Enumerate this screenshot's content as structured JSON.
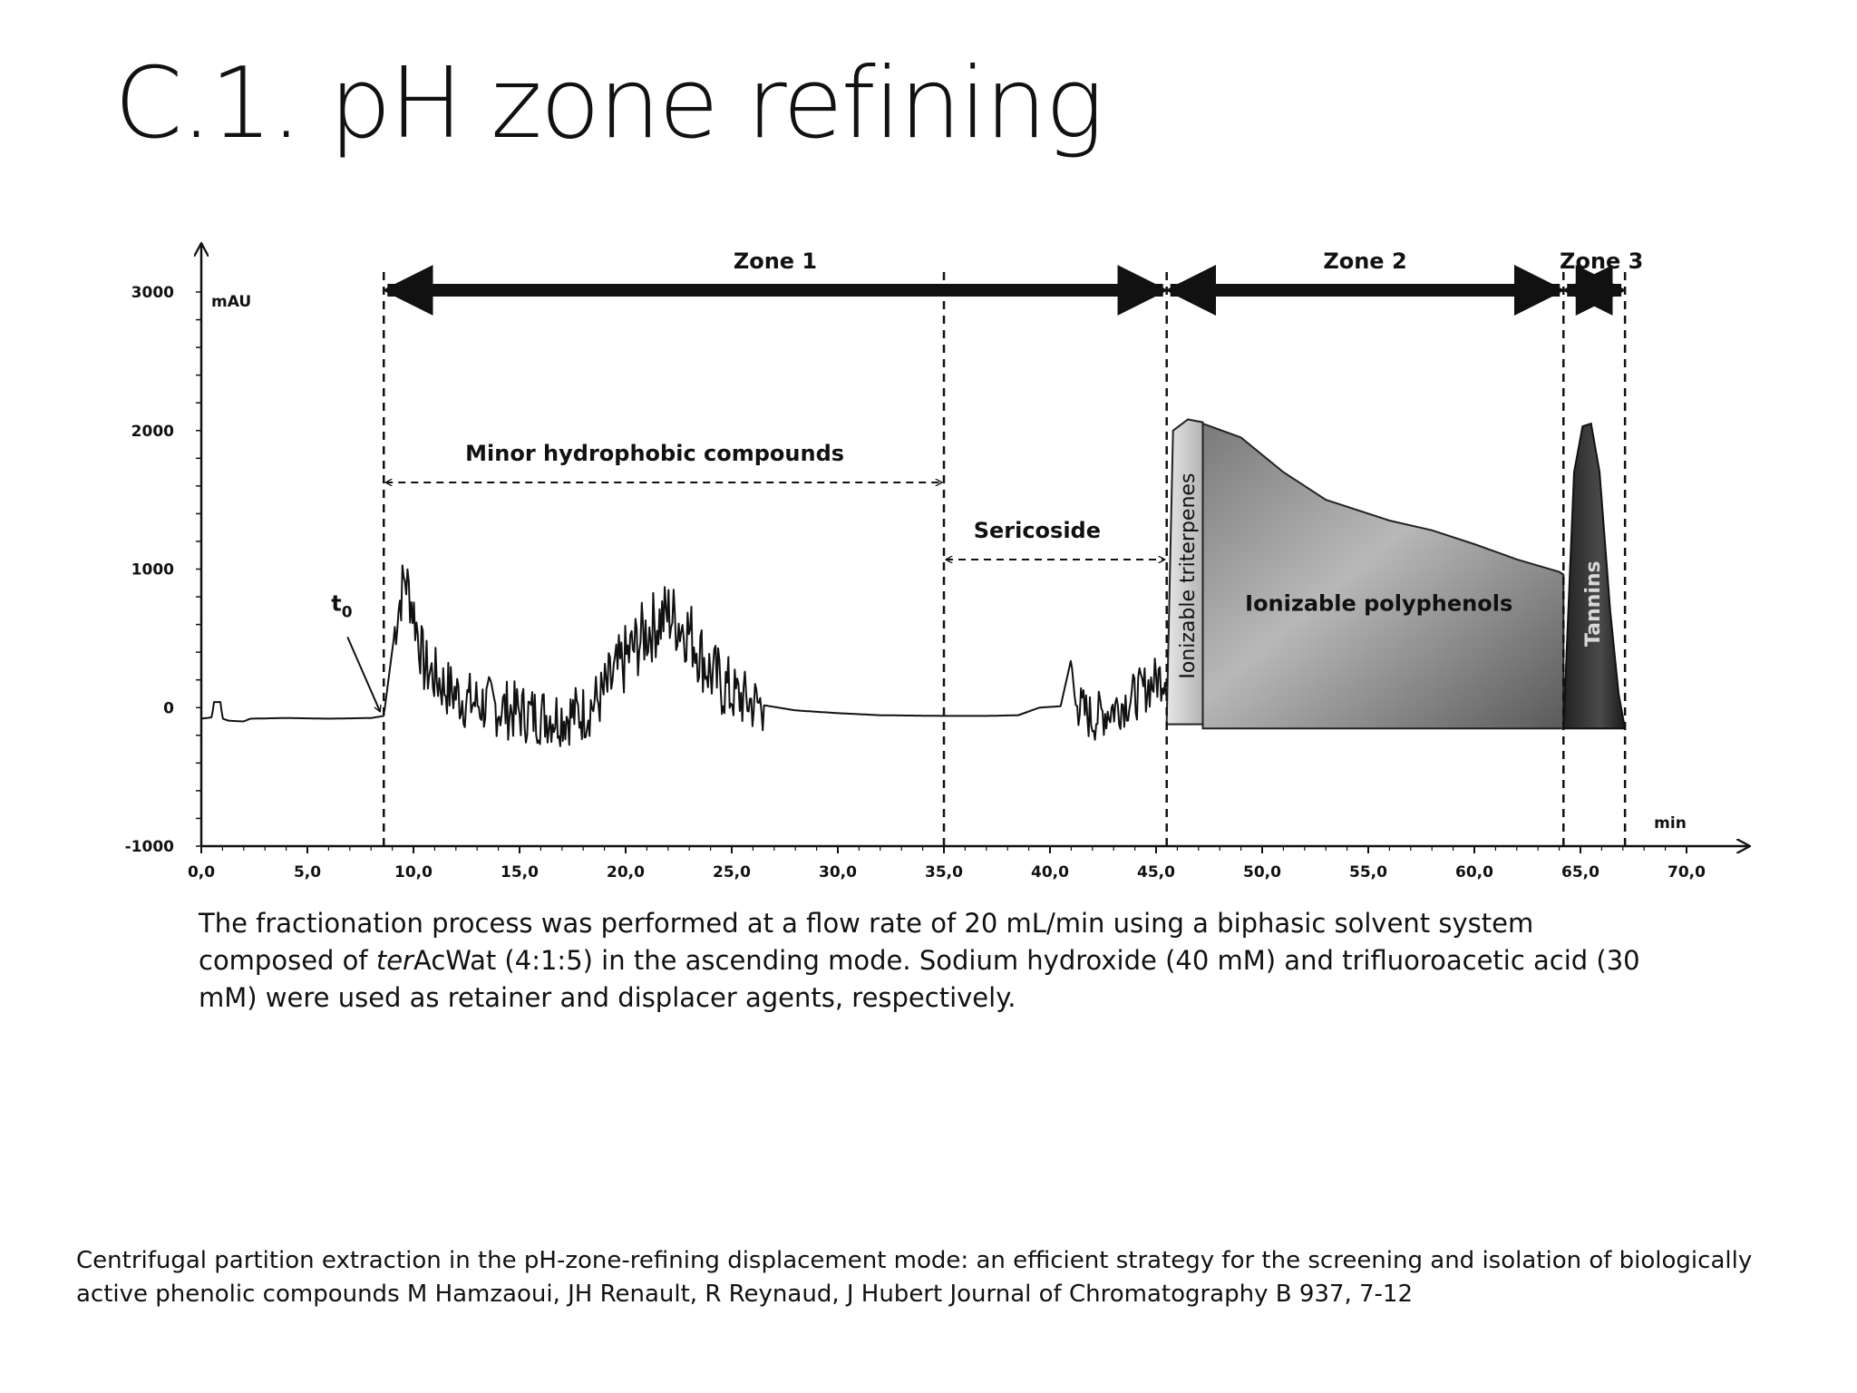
{
  "slide": {
    "title": "C.1. pH zone refining",
    "caption_parts": [
      "The fractionation process was performed at a flow rate of 20 mL/min using a biphasic solvent system composed of ",
      "ter",
      "AcWat (4:1:5) in the ascending mode. Sodium  hydroxide (40 mM) and trifluoroacetic acid (30 mM) were used as retainer and displacer agents, respectively."
    ],
    "reference": "Centrifugal partition extraction in the pH-zone-refining displacement mode: an efficient strategy for the screening and isolation of biologically active phenolic compounds M Hamzaoui, JH Renault, R Reynaud, J Hubert Journal of Chromatography B 937, 7-12"
  },
  "chart_data": {
    "type": "line",
    "xlabel": "min",
    "ylabel": "mAU",
    "xlim": [
      0,
      70
    ],
    "ylim": [
      -1000,
      3000
    ],
    "x_ticks": [
      "0,0",
      "5,0",
      "10,0",
      "15,0",
      "20,0",
      "25,0",
      "30,0",
      "35,0",
      "40,0",
      "45,0",
      "50,0",
      "55,0",
      "60,0",
      "65,0",
      "70,0"
    ],
    "y_ticks": [
      "-1000",
      "0",
      "1000",
      "2000",
      "3000"
    ],
    "t0_label": "t",
    "t0_subscript": "0",
    "t0_x": 8.6,
    "zones": [
      {
        "label": "Zone 1",
        "start": 8.6,
        "end": 45.5
      },
      {
        "label": "Zone 2",
        "start": 45.5,
        "end": 64.2
      },
      {
        "label": "Zone 3",
        "start": 64.2,
        "end": 67.1
      }
    ],
    "fraction_ranges": [
      {
        "label": "Minor hydrophobic compounds",
        "start": 8.6,
        "end": 35.0
      },
      {
        "label": "Sericoside",
        "start": 35.0,
        "end": 45.5
      }
    ],
    "regions": [
      {
        "label": "Ionizable triterpenes",
        "start": 45.5,
        "end": 47.2,
        "shade": "#d2d2d2"
      },
      {
        "label": "Ionizable polyphenols",
        "start": 47.2,
        "end": 64.2,
        "shade": "#9a9a9a"
      },
      {
        "label": "Tannins",
        "start": 64.2,
        "end": 67.1,
        "shade": "#333333"
      }
    ],
    "series": [
      {
        "values": [
          [
            0,
            -80
          ],
          [
            0.5,
            -70
          ],
          [
            0.6,
            40
          ],
          [
            0.9,
            40
          ],
          [
            1.0,
            -80
          ],
          [
            1.3,
            -95
          ],
          [
            2.0,
            -100
          ],
          [
            2.3,
            -80
          ],
          [
            4.0,
            -75
          ],
          [
            6.0,
            -80
          ],
          [
            8.0,
            -75
          ],
          [
            8.6,
            -60
          ],
          [
            9.2,
            650
          ],
          [
            9.6,
            950
          ],
          [
            10.0,
            700
          ],
          [
            10.5,
            300
          ],
          [
            11.5,
            150
          ],
          [
            12.5,
            50
          ],
          [
            14.0,
            0
          ],
          [
            15.5,
            -50
          ],
          [
            17.0,
            -60
          ],
          [
            18.0,
            -40
          ],
          [
            19.0,
            100
          ],
          [
            20.0,
            350
          ],
          [
            21.0,
            550
          ],
          [
            22.0,
            680
          ],
          [
            23.0,
            550
          ],
          [
            24.0,
            250
          ],
          [
            25.0,
            100
          ],
          [
            26.0,
            30
          ],
          [
            28.0,
            -20
          ],
          [
            30.0,
            -40
          ],
          [
            32.0,
            -55
          ],
          [
            35.0,
            -60
          ],
          [
            37.0,
            -60
          ],
          [
            38.5,
            -55
          ],
          [
            39.5,
            0
          ],
          [
            40.5,
            10
          ],
          [
            41.0,
            350
          ],
          [
            41.2,
            20
          ],
          [
            42.0,
            -80
          ],
          [
            43.0,
            0
          ],
          [
            44.0,
            80
          ],
          [
            45.0,
            200
          ],
          [
            45.5,
            250
          ]
        ]
      }
    ],
    "fill_curves": {
      "ionizable_triterpenes": [
        [
          45.5,
          -100
        ],
        [
          45.8,
          2000
        ],
        [
          46.5,
          2080
        ],
        [
          47.2,
          2060
        ],
        [
          47.2,
          -120
        ],
        [
          45.5,
          -120
        ]
      ],
      "ionizable_polyphenols": [
        [
          47.2,
          2050
        ],
        [
          49.0,
          1950
        ],
        [
          51.0,
          1700
        ],
        [
          53.0,
          1500
        ],
        [
          56.0,
          1350
        ],
        [
          58.0,
          1280
        ],
        [
          60.0,
          1180
        ],
        [
          62.0,
          1070
        ],
        [
          64.0,
          980
        ],
        [
          64.2,
          960
        ],
        [
          64.2,
          -150
        ],
        [
          47.2,
          -150
        ]
      ],
      "tannins": [
        [
          64.2,
          -150
        ],
        [
          64.4,
          600
        ],
        [
          64.7,
          1700
        ],
        [
          65.1,
          2030
        ],
        [
          65.5,
          2050
        ],
        [
          65.9,
          1700
        ],
        [
          66.4,
          700
        ],
        [
          66.8,
          100
        ],
        [
          67.1,
          -150
        ]
      ]
    }
  }
}
